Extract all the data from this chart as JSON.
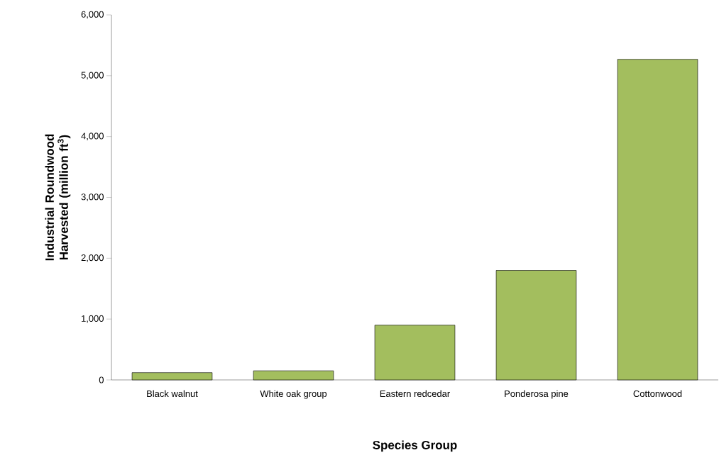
{
  "chart_data": {
    "type": "bar",
    "xlabel": "Species Group",
    "ylabel": "Industrial Roundwood Harvested (million ft$^{3}$)",
    "categories": [
      "Black walnut",
      "White oak group",
      "Eastern redcedar",
      "Ponderosa pine",
      "Cottonwood"
    ],
    "values": [
      120,
      150,
      900,
      1800,
      5270
    ],
    "color": "#a3be5e",
    "ylim": [
      0,
      6000
    ],
    "yticks": [
      0,
      {
        "value": 1000,
        "label": "1,000"
      },
      {
        "value": 2000,
        "label": "2,000"
      },
      {
        "value": 3000,
        "label": "3,000"
      },
      {
        "value": 4000,
        "label": "4,000"
      },
      {
        "value": 5000,
        "label": "5,000"
      },
      {
        "value": 6000,
        "label": "6,000"
      }
    ]
  }
}
